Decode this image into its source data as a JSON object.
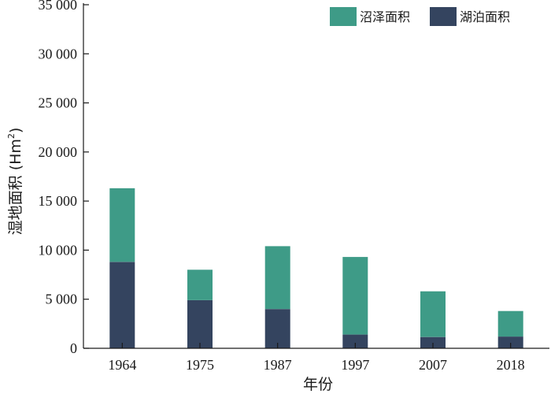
{
  "chart_data": {
    "type": "bar",
    "stacked": true,
    "categories": [
      "1964",
      "1975",
      "1987",
      "1997",
      "2007",
      "2018"
    ],
    "series": [
      {
        "name": "湖泊面积",
        "color": "#34445f",
        "values": [
          8800,
          4900,
          4000,
          1400,
          1150,
          1200
        ]
      },
      {
        "name": "沼泽面积",
        "color": "#3e9b87",
        "values": [
          7500,
          3100,
          6400,
          7900,
          4650,
          2600
        ]
      }
    ],
    "xlabel": "年份",
    "ylabel_main": "湿地面积 (Hm",
    "ylabel_sup": "2",
    "ylabel_close": ")",
    "ylim": [
      0,
      35000
    ],
    "yticks": [
      0,
      5000,
      10000,
      15000,
      20000,
      25000,
      30000,
      35000
    ],
    "ytick_labels": [
      "0",
      "5 000",
      "10 000",
      "15 000",
      "20 000",
      "25 000",
      "30 000",
      "35 000"
    ],
    "grid": false,
    "legend": {
      "placement": "top-right",
      "order": [
        1,
        0
      ]
    }
  }
}
